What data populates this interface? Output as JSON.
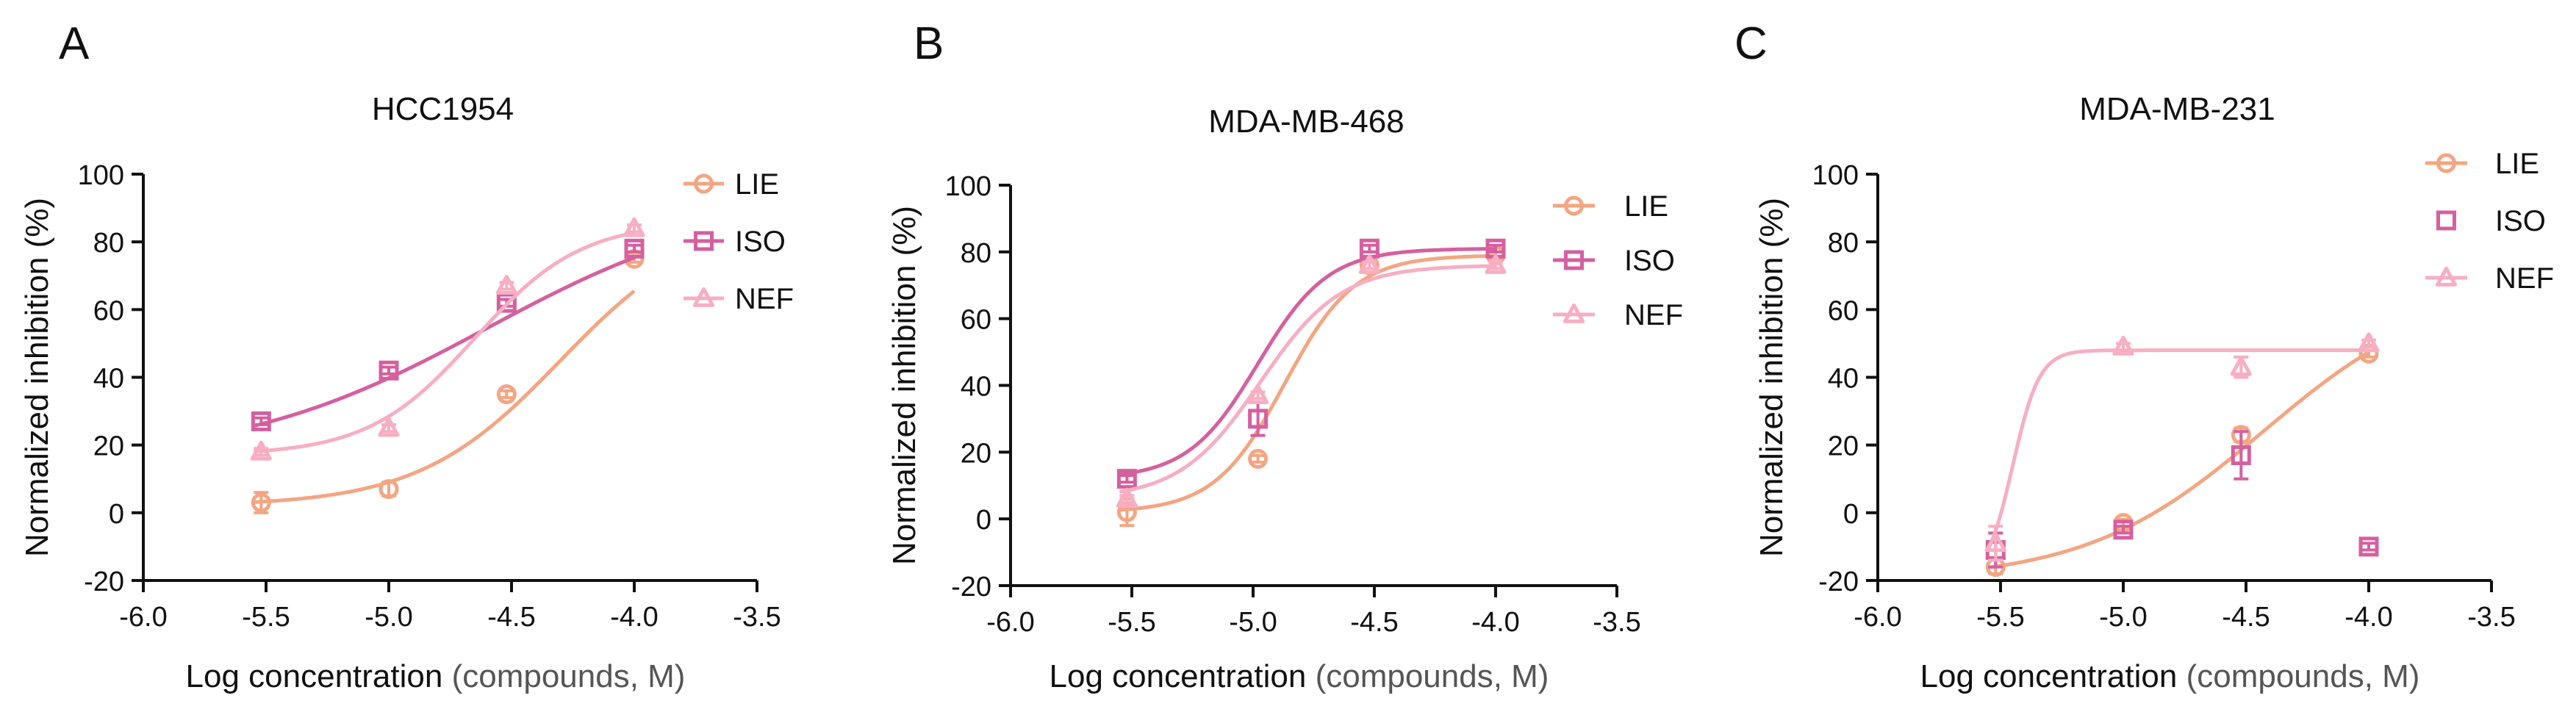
{
  "colors": {
    "LIE": "#F4A582",
    "ISO": "#D5609F",
    "NEF": "#F7AEC3",
    "axis": "#111111",
    "xlabel_gray": "#555555"
  },
  "chart_data": [
    {
      "type": "line",
      "panel_letter": "A",
      "title": "HCC1954",
      "xlabel_main": "Log concentration ",
      "xlabel_paren": "(compounds, M)",
      "ylabel": "Normalized inhibition (%)",
      "xlim": [
        -6.0,
        -3.5
      ],
      "ylim": [
        -20,
        100
      ],
      "xticks": [
        -6.0,
        -5.5,
        -5.0,
        -4.5,
        -4.0,
        -3.5
      ],
      "xtick_labels": [
        "-6.0",
        "-5.5",
        "-5.0",
        "-4.5",
        "-4.0",
        "-3.5"
      ],
      "yticks": [
        -20,
        0,
        20,
        40,
        60,
        80,
        100
      ],
      "ytick_labels": [
        "-20",
        "0",
        "20",
        "40",
        "60",
        "80",
        "100"
      ],
      "legend_position": "top-right",
      "series": [
        {
          "name": "LIE",
          "marker": "circle",
          "x": [
            -5.52,
            -5.0,
            -4.52,
            -4.0
          ],
          "y": [
            3,
            7,
            35,
            75
          ],
          "err": [
            3,
            2,
            1,
            1
          ],
          "fit": {
            "bottom": 2,
            "top": 88,
            "logec50": -4.3,
            "hill": 1.5
          }
        },
        {
          "name": "ISO",
          "marker": "square",
          "x": [
            -5.52,
            -5.0,
            -4.52,
            -4.0
          ],
          "y": [
            27,
            42,
            62,
            78
          ],
          "err": [
            1,
            1,
            1,
            1
          ],
          "fit": {
            "bottom": 15,
            "top": 94,
            "logec50": -4.6,
            "hill": 0.85
          }
        },
        {
          "name": "NEF",
          "marker": "triangle",
          "x": [
            -5.52,
            -5.0,
            -4.52,
            -4.0
          ],
          "y": [
            18,
            25,
            67,
            84
          ],
          "err": [
            1,
            1,
            1,
            1
          ],
          "fit": {
            "bottom": 17,
            "top": 86,
            "logec50": -4.65,
            "hill": 2.0
          }
        }
      ]
    },
    {
      "type": "line",
      "panel_letter": "B",
      "title": "MDA-MB-468",
      "xlabel_main": "Log concentration ",
      "xlabel_paren": "(compounds, M)",
      "ylabel": "Normalized inhibition (%)",
      "xlim": [
        -6.0,
        -3.5
      ],
      "ylim": [
        -20,
        100
      ],
      "xticks": [
        -6.0,
        -5.5,
        -5.0,
        -4.5,
        -4.0,
        -3.5
      ],
      "xtick_labels": [
        "-6.0",
        "-5.5",
        "-5.0",
        "-4.5",
        "-4.0",
        "-3.5"
      ],
      "yticks": [
        -20,
        0,
        20,
        40,
        60,
        80,
        100
      ],
      "ytick_labels": [
        "-20",
        "0",
        "20",
        "40",
        "60",
        "80",
        "100"
      ],
      "legend_position": "right",
      "series": [
        {
          "name": "LIE",
          "marker": "circle",
          "x": [
            -5.52,
            -4.98,
            -4.52,
            -4.0
          ],
          "y": [
            2,
            18,
            76,
            79
          ],
          "err": [
            4,
            1,
            1,
            1
          ],
          "fit": {
            "bottom": 2,
            "top": 79,
            "logec50": -4.87,
            "hill": 3.0
          }
        },
        {
          "name": "ISO",
          "marker": "square",
          "x": [
            -5.52,
            -4.98,
            -4.52,
            -4.0
          ],
          "y": [
            12,
            30,
            81,
            81
          ],
          "err": [
            1,
            5,
            1,
            1
          ],
          "fit": {
            "bottom": 12,
            "top": 81,
            "logec50": -4.98,
            "hill": 3.0
          }
        },
        {
          "name": "NEF",
          "marker": "triangle",
          "x": [
            -5.52,
            -4.98,
            -4.52,
            -4.0
          ],
          "y": [
            6,
            37,
            76,
            76
          ],
          "err": [
            1,
            1,
            1,
            1
          ],
          "fit": {
            "bottom": 6,
            "top": 76,
            "logec50": -4.97,
            "hill": 2.6
          }
        }
      ]
    },
    {
      "type": "line",
      "panel_letter": "C",
      "title": "MDA-MB-231",
      "xlabel_main": "Log concentration ",
      "xlabel_paren": "(compounds, M)",
      "ylabel": "Normalized inhibition (%)",
      "xlim": [
        -6.0,
        -3.5
      ],
      "ylim": [
        -20,
        100
      ],
      "xticks": [
        -6.0,
        -5.5,
        -5.0,
        -4.5,
        -4.0,
        -3.5
      ],
      "xtick_labels": [
        "-6.0",
        "-5.5",
        "-5.0",
        "-4.5",
        "-4.0",
        "-3.5"
      ],
      "yticks": [
        -20,
        0,
        20,
        40,
        60,
        80,
        100
      ],
      "ytick_labels": [
        "-20",
        "0",
        "20",
        "40",
        "60",
        "80",
        "100"
      ],
      "legend_position": "top-right, outside",
      "series": [
        {
          "name": "LIE",
          "marker": "circle",
          "x": [
            -5.52,
            -5.0,
            -4.52,
            -4.0
          ],
          "y": [
            -16,
            -3,
            23,
            47
          ],
          "err": [
            2,
            1,
            2,
            1
          ],
          "fit": {
            "bottom": -20,
            "top": 68,
            "logec50": -4.43,
            "hill": 1.2
          }
        },
        {
          "name": "ISO",
          "marker": "square",
          "x": [
            -5.52,
            -5.0,
            -4.52,
            -4.0
          ],
          "y": [
            -11,
            -5,
            17,
            -10
          ],
          "err": [
            5,
            1,
            7,
            1
          ],
          "fit": null
        },
        {
          "name": "NEF",
          "marker": "triangle",
          "x": [
            -5.52,
            -5.0,
            -4.52,
            -4.0
          ],
          "y": [
            -9,
            49,
            43,
            50
          ],
          "err": [
            5,
            1,
            3,
            1
          ],
          "fit": {
            "bottom": -20,
            "top": 48,
            "logec50": -5.45,
            "hill": 8
          }
        }
      ]
    }
  ]
}
